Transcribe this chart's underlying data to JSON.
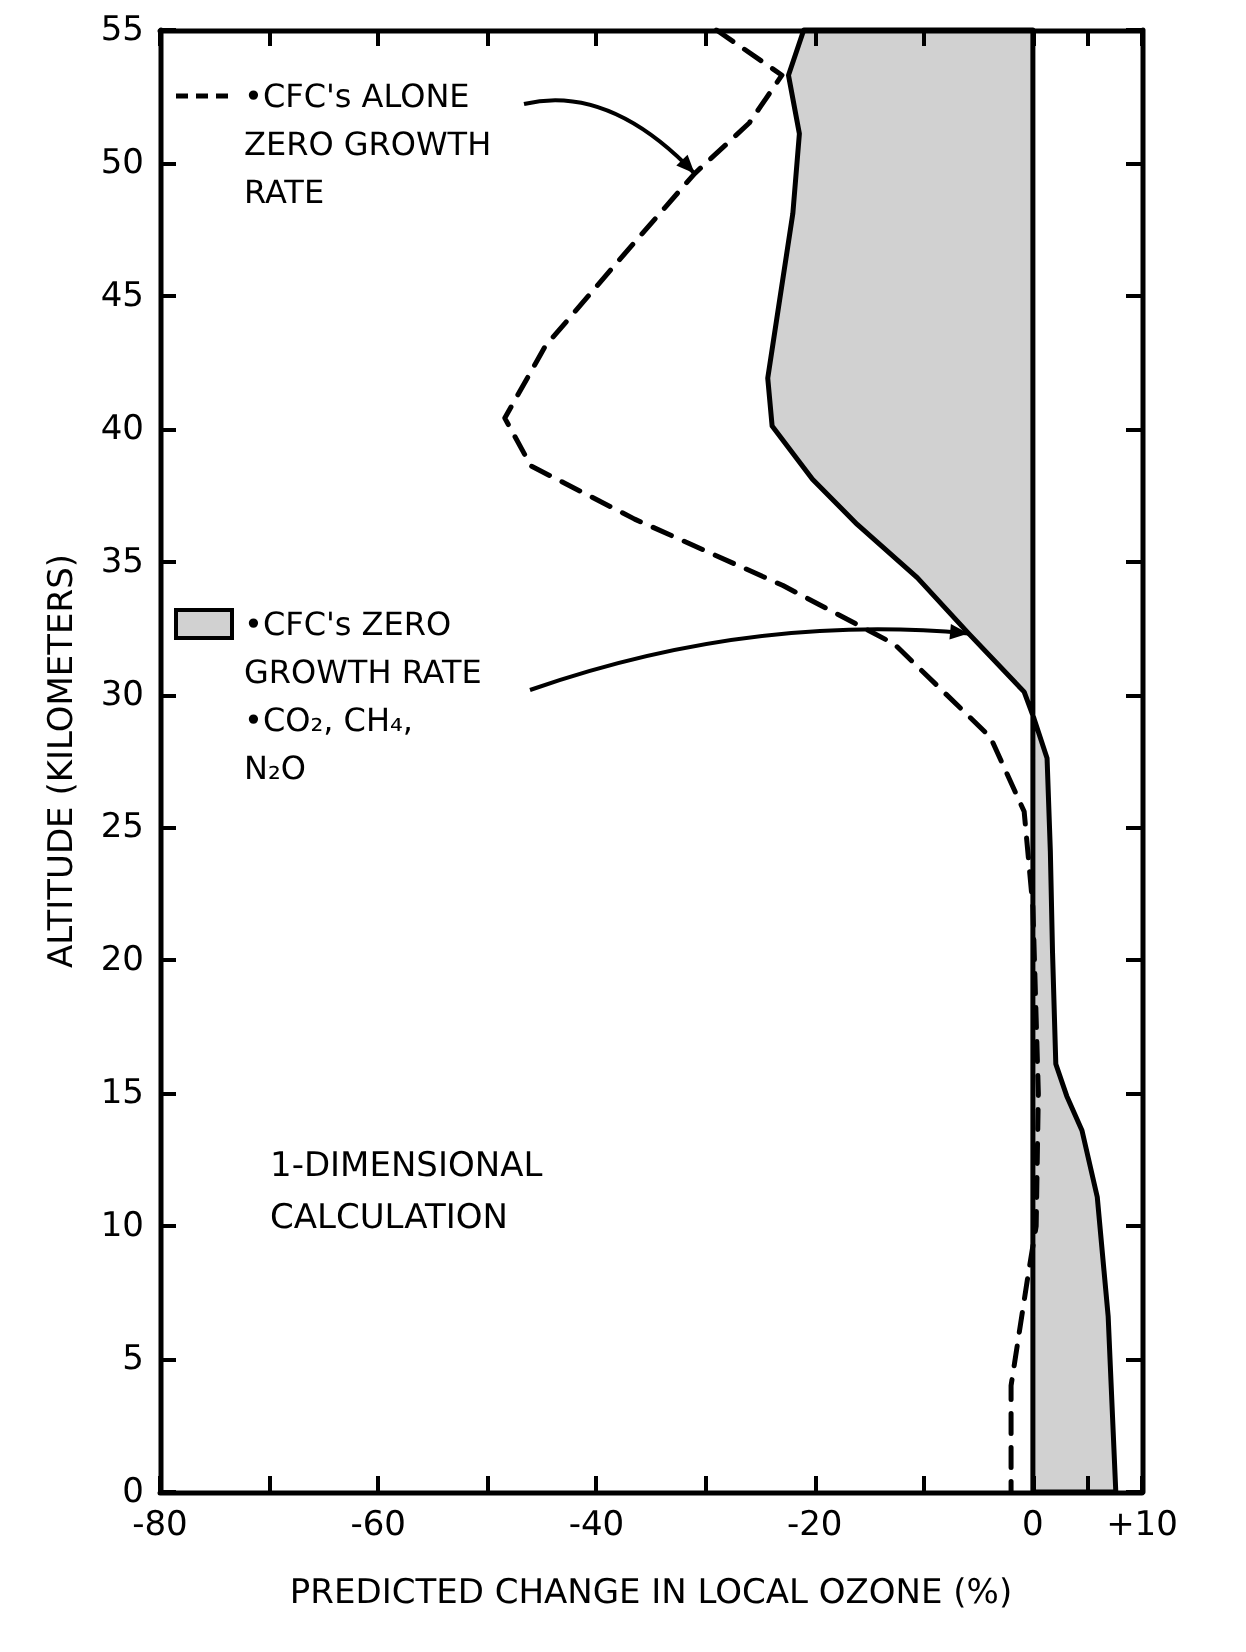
{
  "chart_data": {
    "type": "line",
    "xlabel": "PREDICTED CHANGE IN LOCAL OZONE (%)",
    "ylabel": "ALTITUDE (KILOMETERS)",
    "xlim": [
      -80,
      10
    ],
    "ylim": [
      0,
      55
    ],
    "orientation": "horizontal",
    "legend": "top left",
    "xticks": [
      -80,
      {
        "value": -70,
        "label": null
      },
      -60,
      {
        "value": -50,
        "label": null
      },
      -40,
      {
        "value": -30,
        "label": null
      },
      -20,
      {
        "value": -10,
        "label": null
      },
      0,
      {
        "value": 5,
        "label": null
      },
      {
        "value": 10,
        "label": "+10"
      }
    ],
    "yticks": [
      0,
      5,
      10,
      15,
      20,
      25,
      30,
      35,
      40,
      45,
      50,
      55
    ],
    "annotations": [
      "1-DIMENSIONAL CALCULATION"
    ],
    "series": [
      {
        "name": "•CFC's ALONE ZERO GROWTH RATE",
        "line_style": "dashed",
        "color": "#000000",
        "values": [
          -29,
          -23,
          -26,
          -31,
          -37.8,
          -44.7,
          -48.4,
          -46,
          -36.5,
          -22.9,
          -12.7,
          -3.9,
          -0.8,
          0,
          0.5,
          0.3,
          -0.5,
          -2,
          -2
        ],
        "x": [
          55,
          53.3,
          51.5,
          49.6,
          46.4,
          43.1,
          40.4,
          38.6,
          36.6,
          34.1,
          31.9,
          28.4,
          25.6,
          22,
          15,
          10,
          8,
          4,
          0
        ]
      },
      {
        "name": "•CFC's ZERO GROWTH RATE •CO₂, CH₄, N₂O",
        "type": "area",
        "line_style": "solid",
        "color": "#000000",
        "values": [
          -21,
          -22.4,
          -21.4,
          -22,
          -23.3,
          -24.3,
          -23.9,
          -20.2,
          -16.1,
          -10.6,
          -5.9,
          -0.8,
          0.1,
          1.3,
          1.6,
          1.8,
          2.1,
          3.1,
          4.5,
          5.9,
          6.9,
          7.6
        ],
        "x": [
          55,
          53.3,
          51.1,
          48.1,
          44.6,
          41.9,
          40.1,
          38.1,
          36.4,
          34.4,
          32.3,
          30.1,
          29.1,
          27.6,
          24.1,
          20.3,
          16.1,
          14.9,
          13.6,
          11.1,
          6.6,
          0
        ]
      }
    ]
  }
}
